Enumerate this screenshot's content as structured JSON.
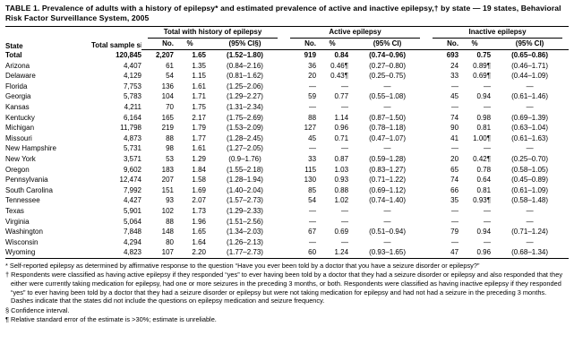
{
  "title": "TABLE 1. Prevalence of adults with a history of epilepsy* and estimated prevalence of active and inactive epilepsy,† by state — 19 states, Behavioral Risk Factor Surveillance System, 2005",
  "table": {
    "col_headers": {
      "state": "State",
      "sample_size": "Total sample size",
      "groups": [
        {
          "label": "Total with history of epilepsy",
          "cols": [
            "No.",
            "%",
            "(95% CI§)"
          ]
        },
        {
          "label": "Active epilepsy",
          "cols": [
            "No.",
            "%",
            "(95% CI)"
          ]
        },
        {
          "label": "Inactive epilepsy",
          "cols": [
            "No.",
            "%",
            "(95% CI)"
          ]
        }
      ]
    },
    "rows": [
      {
        "state": "Total",
        "sample": "120,845",
        "bold": true,
        "values": [
          "2,207",
          "1.65",
          "(1.52–1.80)",
          "919",
          "0.84",
          "(0.74–0.96)",
          "693",
          "0.75",
          "(0.65–0.86)"
        ]
      },
      {
        "state": "Arizona",
        "sample": "4,407",
        "bold": false,
        "values": [
          "61",
          "1.35",
          "(0.84–2.16)",
          "36",
          "0.46¶",
          "(0.27–0.80)",
          "24",
          "0.89¶",
          "(0.46–1.71)"
        ]
      },
      {
        "state": "Delaware",
        "sample": "4,129",
        "bold": false,
        "values": [
          "54",
          "1.15",
          "(0.81–1.62)",
          "20",
          "0.43¶",
          "(0.25–0.75)",
          "33",
          "0.69¶",
          "(0.44–1.09)"
        ]
      },
      {
        "state": "Florida",
        "sample": "7,753",
        "bold": false,
        "values": [
          "136",
          "1.61",
          "(1.25–2.06)",
          "—",
          "—",
          "—",
          "—",
          "—",
          "—"
        ]
      },
      {
        "state": "Georgia",
        "sample": "5,783",
        "bold": false,
        "values": [
          "104",
          "1.71",
          "(1.29–2.27)",
          "59",
          "0.77",
          "(0.55–1.08)",
          "45",
          "0.94",
          "(0.61–1.46)"
        ]
      },
      {
        "state": "Kansas",
        "sample": "4,211",
        "bold": false,
        "values": [
          "70",
          "1.75",
          "(1.31–2.34)",
          "—",
          "—",
          "—",
          "—",
          "—",
          "—"
        ]
      },
      {
        "state": "Kentucky",
        "sample": "6,164",
        "bold": false,
        "values": [
          "165",
          "2.17",
          "(1.75–2.69)",
          "88",
          "1.14",
          "(0.87–1.50)",
          "74",
          "0.98",
          "(0.69–1.39)"
        ]
      },
      {
        "state": "Michigan",
        "sample": "11,798",
        "bold": false,
        "values": [
          "219",
          "1.79",
          "(1.53–2.09)",
          "127",
          "0.96",
          "(0.78–1.18)",
          "90",
          "0.81",
          "(0.63–1.04)"
        ]
      },
      {
        "state": "Missouri",
        "sample": "4,873",
        "bold": false,
        "values": [
          "88",
          "1.77",
          "(1.28–2.45)",
          "45",
          "0.71",
          "(0.47–1.07)",
          "41",
          "1.00¶",
          "(0.61–1.63)"
        ]
      },
      {
        "state": "New Hampshire",
        "sample": "5,731",
        "bold": false,
        "values": [
          "98",
          "1.61",
          "(1.27–2.05)",
          "—",
          "—",
          "—",
          "—",
          "—",
          "—"
        ]
      },
      {
        "state": "New York",
        "sample": "3,571",
        "bold": false,
        "values": [
          "53",
          "1.29",
          "(0.9–1.76)",
          "33",
          "0.87",
          "(0.59–1.28)",
          "20",
          "0.42¶",
          "(0.25–0.70)"
        ]
      },
      {
        "state": "Oregon",
        "sample": "9,602",
        "bold": false,
        "values": [
          "183",
          "1.84",
          "(1.55–2.18)",
          "115",
          "1.03",
          "(0.83–1.27)",
          "65",
          "0.78",
          "(0.58–1.05)"
        ]
      },
      {
        "state": "Pennsylvania",
        "sample": "12,474",
        "bold": false,
        "values": [
          "207",
          "1.58",
          "(1.28–1.94)",
          "130",
          "0.93",
          "(0.71–1.22)",
          "74",
          "0.64",
          "(0.45–0.89)"
        ]
      },
      {
        "state": "South Carolina",
        "sample": "7,992",
        "bold": false,
        "values": [
          "151",
          "1.69",
          "(1.40–2.04)",
          "85",
          "0.88",
          "(0.69–1.12)",
          "66",
          "0.81",
          "(0.61–1.09)"
        ]
      },
      {
        "state": "Tennessee",
        "sample": "4,427",
        "bold": false,
        "values": [
          "93",
          "2.07",
          "(1.57–2.73)",
          "54",
          "1.02",
          "(0.74–1.40)",
          "35",
          "0.93¶",
          "(0.58–1.48)"
        ]
      },
      {
        "state": "Texas",
        "sample": "5,901",
        "bold": false,
        "values": [
          "102",
          "1.73",
          "(1.29–2.33)",
          "—",
          "—",
          "—",
          "—",
          "—",
          "—"
        ]
      },
      {
        "state": "Virginia",
        "sample": "5,064",
        "bold": false,
        "values": [
          "88",
          "1.96",
          "(1.51–2.56)",
          "—",
          "—",
          "—",
          "—",
          "—",
          "—"
        ]
      },
      {
        "state": "Washington",
        "sample": "7,848",
        "bold": false,
        "values": [
          "148",
          "1.65",
          "(1.34–2.03)",
          "67",
          "0.69",
          "(0.51–0.94)",
          "79",
          "0.94",
          "(0.71–1.24)"
        ]
      },
      {
        "state": "Wisconsin",
        "sample": "4,294",
        "bold": false,
        "values": [
          "80",
          "1.64",
          "(1.26–2.13)",
          "—",
          "—",
          "—",
          "—",
          "—",
          "—"
        ]
      },
      {
        "state": "Wyoming",
        "sample": "4,823",
        "bold": false,
        "values": [
          "107",
          "2.20",
          "(1.77–2.73)",
          "60",
          "1.24",
          "(0.93–1.65)",
          "47",
          "0.96",
          "(0.68–1.34)"
        ]
      }
    ]
  },
  "footnotes": [
    "* Self-reported epilepsy as determined by affirmative response to the question “Have you ever been told by a doctor that you have a seizure disorder or epilepsy?”",
    "† Respondents were classified as having active epilepsy if they responded “yes” to ever having been told by a doctor that they had a seizure disorder or epilepsy and also responded that they either were currently taking medication for epilepsy, had one or more seizures in the preceding 3 months, or both. Respondents were classified as having inactive epilepsy if they responded “yes” to ever having been told by a doctor that they had a seizure disorder or epilepsy but were not taking medication for epilepsy and had not had a seizure in the preceding 3 months. Dashes indicate that the states did not include the questions on epilepsy medication and seizure frequency.",
    "§ Confidence interval.",
    "¶ Relative standard error of the estimate is >30%; estimate is unreliable."
  ]
}
